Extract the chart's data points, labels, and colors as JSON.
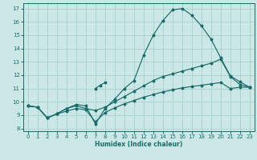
{
  "xlabel": "Humidex (Indice chaleur)",
  "xlim": [
    -0.5,
    23.5
  ],
  "ylim": [
    7.8,
    17.4
  ],
  "xticks": [
    0,
    1,
    2,
    3,
    4,
    5,
    6,
    7,
    8,
    9,
    10,
    11,
    12,
    13,
    14,
    15,
    16,
    17,
    18,
    19,
    20,
    21,
    22,
    23
  ],
  "yticks": [
    8,
    9,
    10,
    11,
    12,
    13,
    14,
    15,
    16,
    17
  ],
  "background_color": "#cce8e6",
  "grid_color": "#aad4d0",
  "line_color": "#1a6b6b",
  "line1_x": [
    0,
    1,
    2,
    3,
    4,
    5,
    6,
    7,
    8,
    9,
    10,
    11,
    12,
    13,
    14,
    15,
    16,
    17,
    18,
    19,
    20,
    21,
    22,
    23
  ],
  "line1_y": [
    9.7,
    9.6,
    8.8,
    9.1,
    9.5,
    9.8,
    9.7,
    8.35,
    9.5,
    10.2,
    11.0,
    11.6,
    13.5,
    15.0,
    16.1,
    16.9,
    17.0,
    16.5,
    15.7,
    14.7,
    13.3,
    11.95,
    11.5,
    11.1
  ],
  "line2_x": [
    0,
    1,
    2,
    3,
    4,
    5,
    6,
    7,
    8,
    9,
    10,
    11,
    12,
    13,
    14,
    15,
    16,
    17,
    18,
    19,
    20,
    21,
    22,
    23
  ],
  "line2_y": [
    9.7,
    9.6,
    8.8,
    9.1,
    9.5,
    9.7,
    9.5,
    9.35,
    9.6,
    10.0,
    10.4,
    10.8,
    11.2,
    11.6,
    11.9,
    12.1,
    12.3,
    12.5,
    12.7,
    12.9,
    13.2,
    11.9,
    11.3,
    11.1
  ],
  "line3_x": [
    0,
    1,
    2,
    3,
    4,
    5,
    6,
    7,
    8,
    9,
    10,
    11,
    12,
    13,
    14,
    15,
    16,
    17,
    18,
    19,
    20,
    21,
    22,
    23
  ],
  "line3_y": [
    9.7,
    9.6,
    8.8,
    9.1,
    9.3,
    9.5,
    9.4,
    8.5,
    9.2,
    9.55,
    9.85,
    10.1,
    10.35,
    10.55,
    10.75,
    10.9,
    11.05,
    11.15,
    11.25,
    11.35,
    11.45,
    11.0,
    11.1,
    11.1
  ],
  "line4_x": [
    7,
    7.5,
    8
  ],
  "line4_y": [
    11.0,
    11.25,
    11.45
  ]
}
